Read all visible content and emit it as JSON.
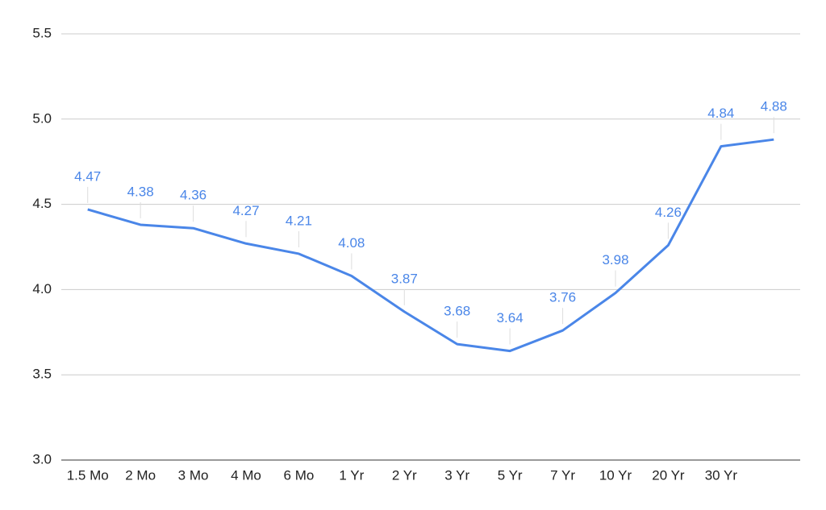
{
  "chart_data": {
    "type": "line",
    "categories": [
      "1.5 Mo",
      "2 Mo",
      "3 Mo",
      "4 Mo",
      "6 Mo",
      "1 Yr",
      "2 Yr",
      "3 Yr",
      "5 Yr",
      "7 Yr",
      "10 Yr",
      "20 Yr",
      "30 Yr",
      null
    ],
    "series": [
      {
        "color": "#4a86e8",
        "values": [
          4.47,
          4.38,
          4.36,
          4.27,
          4.21,
          4.08,
          3.87,
          3.68,
          3.64,
          3.76,
          3.98,
          4.26,
          4.84,
          4.88
        ]
      }
    ],
    "ylim": [
      3,
      5.5
    ],
    "yticks": [
      {
        "value": 3,
        "label": "3.0"
      },
      3.5,
      {
        "value": 4,
        "label": "4.0"
      },
      4.5,
      {
        "value": 5,
        "label": "5.0"
      },
      5.5
    ],
    "grid": true,
    "data_labels": true
  }
}
